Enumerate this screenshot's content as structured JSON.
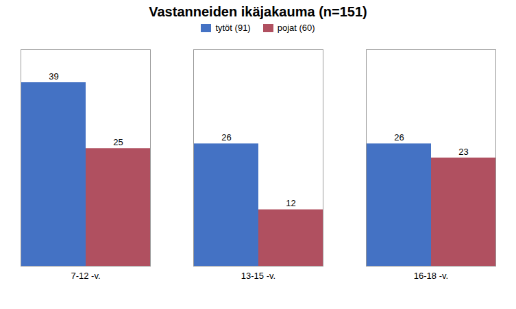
{
  "chart_data": {
    "type": "bar",
    "title": "Vastanneiden ikäjakauma (n=151)",
    "categories": [
      "7-12 -v.",
      "13-15 -v.",
      "16-18 -v."
    ],
    "series": [
      {
        "name": "tytöt (91)",
        "color": "#4472C4",
        "values": [
          39,
          26,
          26
        ]
      },
      {
        "name": "pojat (60)",
        "color": "#B05060",
        "values": [
          25,
          12,
          23
        ]
      }
    ],
    "ylim": [
      0,
      46
    ],
    "data_labels": true,
    "tick_labels": "x",
    "grid": false,
    "legend": "top"
  }
}
